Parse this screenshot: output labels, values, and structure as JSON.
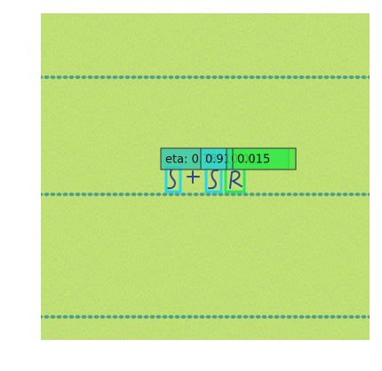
{
  "detections": [
    {
      "label": "eta: 0.78"
    },
    {
      "label": "0.91"
    },
    {
      "label": "0.01"
    },
    {
      "label": "0.015"
    }
  ]
}
